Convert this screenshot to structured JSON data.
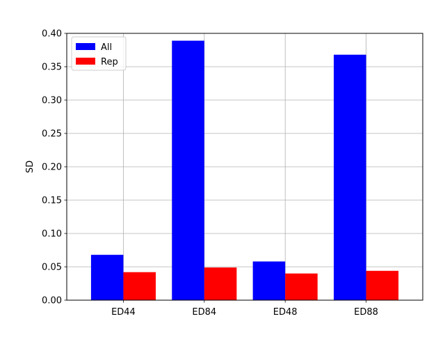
{
  "chart_data": {
    "type": "bar",
    "title": "",
    "xlabel": "",
    "ylabel": "SD",
    "categories": [
      "ED44",
      "ED84",
      "ED48",
      "ED88"
    ],
    "ylim": [
      0,
      0.4
    ],
    "yticks": [
      "0.00",
      "0.05",
      "0.10",
      "0.15",
      "0.20",
      "0.25",
      "0.30",
      "0.35",
      "0.40"
    ],
    "grid": true,
    "legend_position": "top-left",
    "series": [
      {
        "name": "All",
        "color": "#0000ff",
        "values": [
          0.068,
          0.389,
          0.058,
          0.368
        ]
      },
      {
        "name": "Rep",
        "color": "#ff0000",
        "values": [
          0.042,
          0.049,
          0.04,
          0.044
        ]
      }
    ]
  }
}
